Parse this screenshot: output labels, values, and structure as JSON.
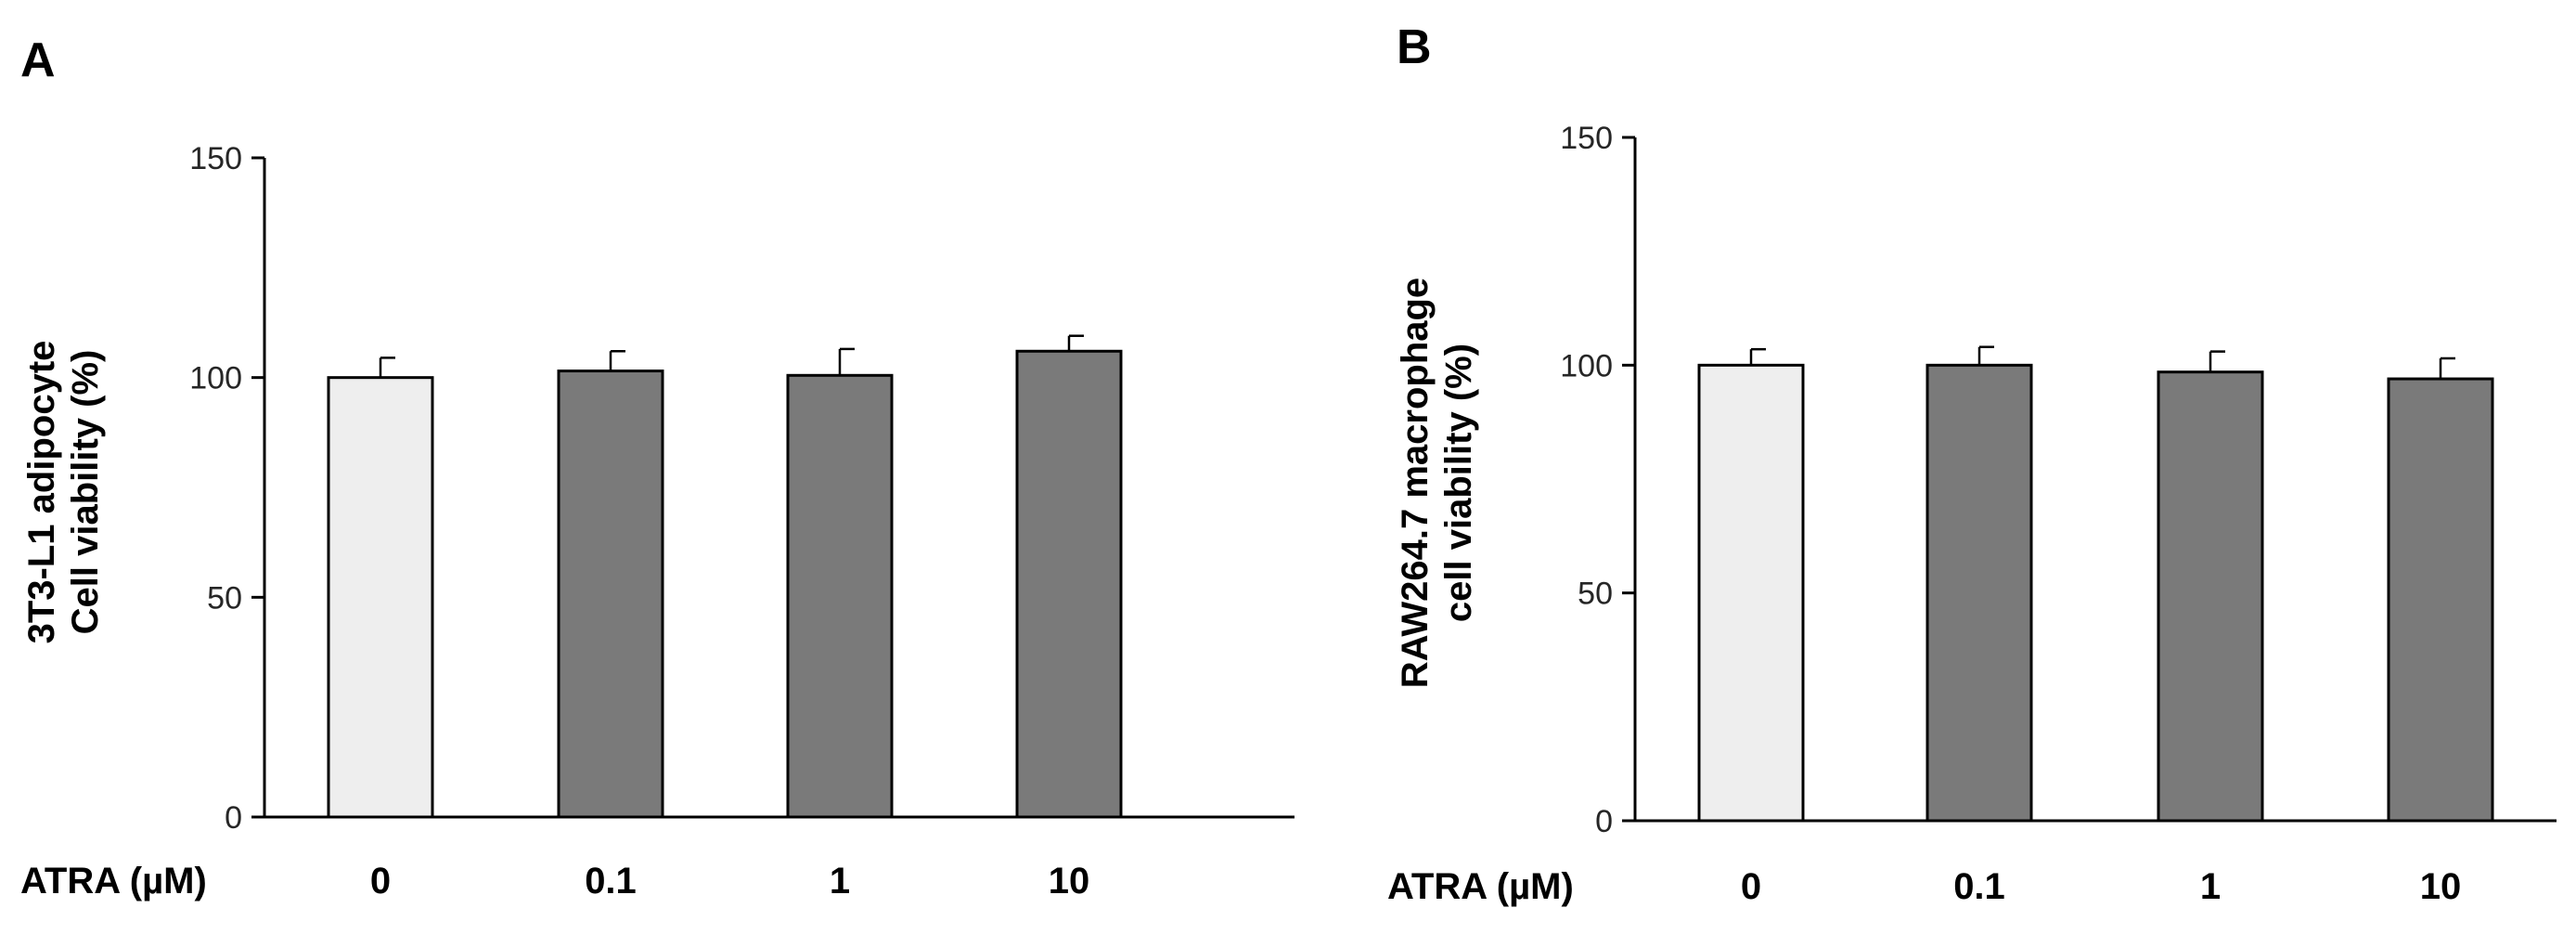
{
  "chart_data": [
    {
      "panel": "A",
      "type": "bar",
      "ylabel_lines": [
        "3T3-L1 adipocyte",
        "Cell viability (%)"
      ],
      "xlabel": "ATRA (µM)",
      "categories": [
        "0",
        "0.1",
        "1",
        "10"
      ],
      "values": [
        100,
        101.5,
        100.5,
        106
      ],
      "errors": [
        4.5,
        4.5,
        6,
        3.5
      ],
      "bar_colors": [
        "#eeeeee",
        "#7a7a7a",
        "#7a7a7a",
        "#7a7a7a"
      ],
      "ylim": [
        0,
        150
      ],
      "yticks": [
        0,
        50,
        100,
        150
      ],
      "grid": false
    },
    {
      "panel": "B",
      "type": "bar",
      "ylabel_lines": [
        "RAW264.7 macrophage",
        "cell viability (%)"
      ],
      "xlabel": "ATRA (µM)",
      "categories": [
        "0",
        "0.1",
        "1",
        "10"
      ],
      "values": [
        100,
        100,
        98.5,
        97
      ],
      "errors": [
        3.5,
        4,
        4.5,
        4.5
      ],
      "bar_colors": [
        "#eeeeee",
        "#7a7a7a",
        "#7a7a7a",
        "#7a7a7a"
      ],
      "ylim": [
        0,
        150
      ],
      "yticks": [
        0,
        50,
        100,
        150
      ],
      "grid": false
    }
  ]
}
